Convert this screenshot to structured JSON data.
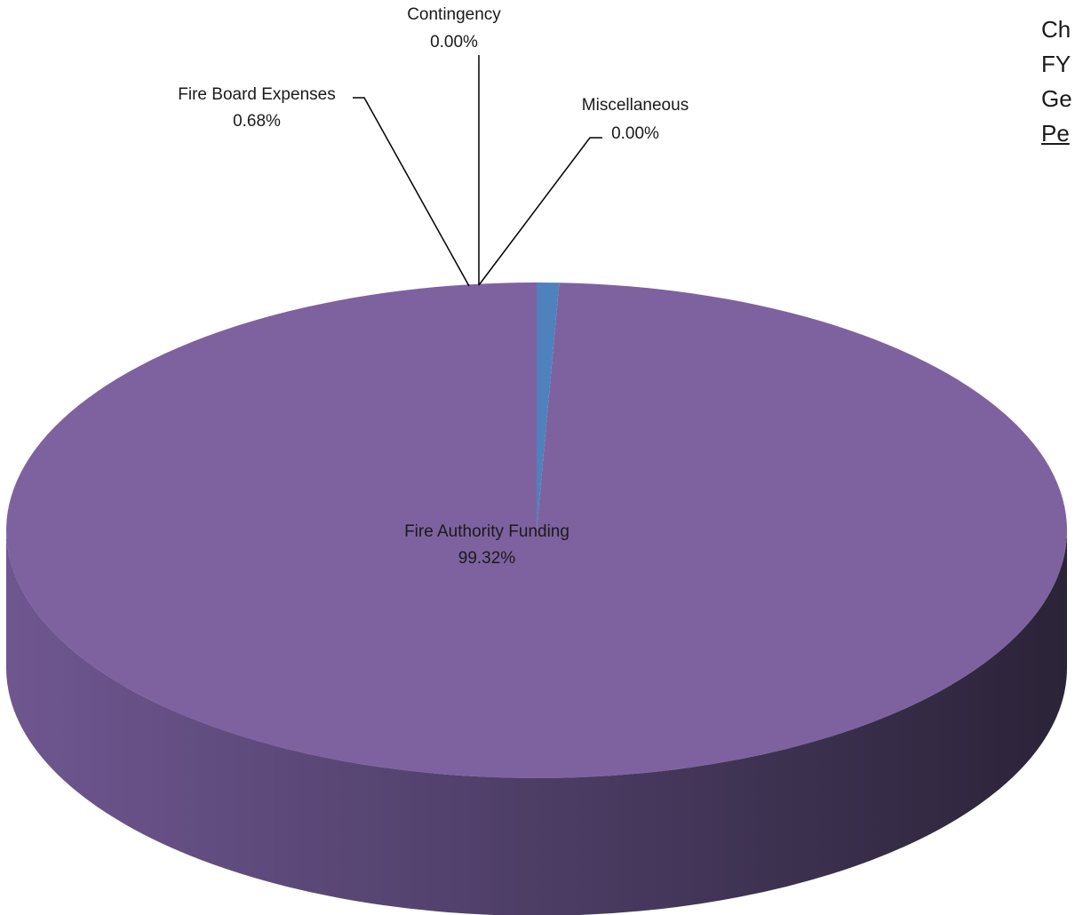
{
  "chart_data": {
    "type": "pie",
    "three_d": true,
    "title_lines_visible": [
      "Ch",
      "FY",
      "Ge",
      "Pe"
    ],
    "unit": "%",
    "slices": [
      {
        "label": "Fire Authority Funding",
        "value": 99.32,
        "value_text": "99.32%",
        "color": "#7e62a0"
      },
      {
        "label": "Fire Board Expenses",
        "value": 0.68,
        "value_text": "0.68%",
        "color": "#4f81bd"
      },
      {
        "label": "Contingency",
        "value": 0.0,
        "value_text": "0.00%",
        "color": "#9bbb59"
      },
      {
        "label": "Miscellaneous",
        "value": 0.0,
        "value_text": "0.00%",
        "color": "#c0504d"
      }
    ],
    "legend": "none"
  }
}
